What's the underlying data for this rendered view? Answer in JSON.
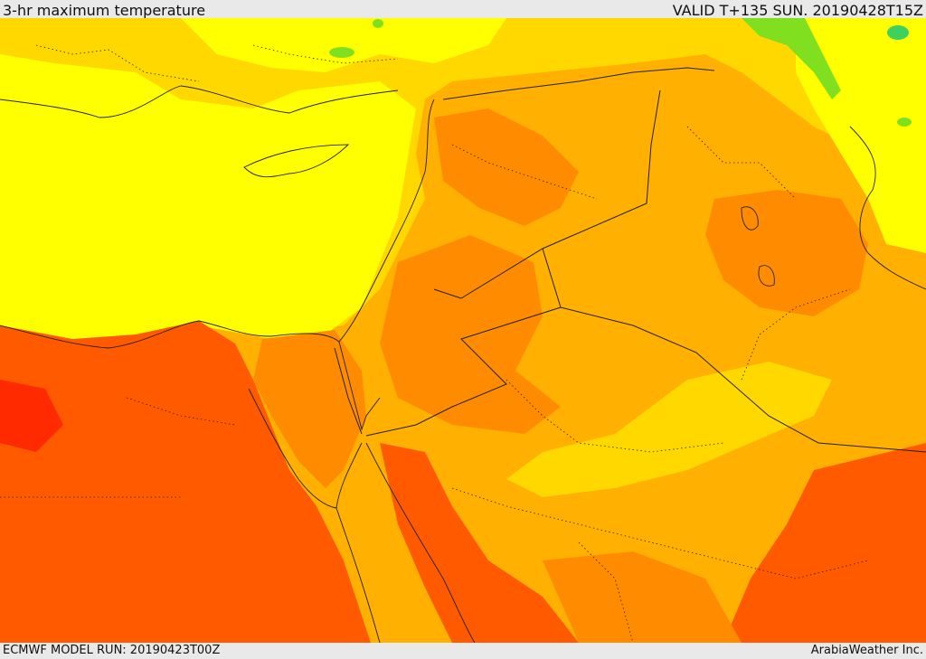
{
  "header": {
    "title": "3-hr maximum temperature",
    "valid": "VALID T+135 SUN. 20190428T15Z"
  },
  "footer": {
    "model_run": "ECMWF MODEL RUN: 20190423T00Z",
    "credit": "ArabiaWeather Inc."
  },
  "map": {
    "field": "3-hr maximum temperature",
    "palette": {
      "green": "#80e020",
      "light_green": "#c8f000",
      "yellow": "#ffff00",
      "gold": "#ffd800",
      "orange_light": "#ffb000",
      "orange": "#ff8c00",
      "orange_red": "#ff5a00",
      "red": "#ff2a00"
    }
  }
}
